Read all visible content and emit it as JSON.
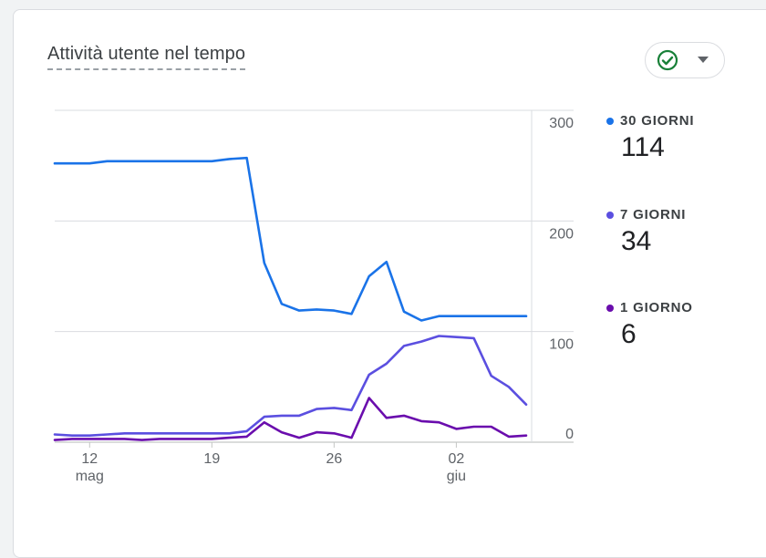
{
  "card": {
    "title": "Attività utente nel tempo"
  },
  "colors": {
    "series_30": "#1a73e8",
    "series_7": "#5b4fe0",
    "series_1": "#6a0dad",
    "status_check": "#188038",
    "gridline": "#dadce0",
    "axis_text": "#5f6368"
  },
  "legend": [
    {
      "label": "30 GIORNI",
      "value": "114"
    },
    {
      "label": "7 GIORNI",
      "value": "34"
    },
    {
      "label": "1 GIORNO",
      "value": "6"
    }
  ],
  "chart_data": {
    "type": "line",
    "x": [
      "2024-05-10",
      "2024-05-11",
      "2024-05-12",
      "2024-05-13",
      "2024-05-14",
      "2024-05-15",
      "2024-05-16",
      "2024-05-17",
      "2024-05-18",
      "2024-05-19",
      "2024-05-20",
      "2024-05-21",
      "2024-05-22",
      "2024-05-23",
      "2024-05-24",
      "2024-05-25",
      "2024-05-26",
      "2024-05-27",
      "2024-05-28",
      "2024-05-29",
      "2024-05-30",
      "2024-05-31",
      "2024-06-01",
      "2024-06-02",
      "2024-06-03",
      "2024-06-04",
      "2024-06-05",
      "2024-06-06"
    ],
    "x_ticks": [
      {
        "x": "2024-05-12",
        "label": "12",
        "sublabel": "mag"
      },
      {
        "x": "2024-05-19",
        "label": "19",
        "sublabel": ""
      },
      {
        "x": "2024-05-26",
        "label": "26",
        "sublabel": ""
      },
      {
        "x": "2024-06-02",
        "label": "02",
        "sublabel": "giu"
      }
    ],
    "y_ticks": [
      0,
      100,
      200,
      300
    ],
    "ylim": [
      0,
      300
    ],
    "series": [
      {
        "name": "30 GIORNI",
        "values": [
          252,
          252,
          252,
          254,
          254,
          254,
          254,
          254,
          254,
          254,
          256,
          257,
          162,
          125,
          119,
          120,
          119,
          116,
          150,
          163,
          118,
          110,
          114,
          114,
          114,
          114,
          114,
          114
        ]
      },
      {
        "name": "7 GIORNI",
        "values": [
          7,
          6,
          6,
          7,
          8,
          8,
          8,
          8,
          8,
          8,
          8,
          10,
          23,
          24,
          24,
          30,
          31,
          29,
          61,
          71,
          87,
          91,
          96,
          95,
          94,
          60,
          50,
          34
        ]
      },
      {
        "name": "1 GIORNO",
        "values": [
          2,
          3,
          3,
          3,
          3,
          2,
          3,
          3,
          3,
          3,
          4,
          5,
          18,
          9,
          4,
          9,
          8,
          4,
          40,
          22,
          24,
          19,
          18,
          12,
          14,
          14,
          5,
          6
        ]
      }
    ]
  }
}
